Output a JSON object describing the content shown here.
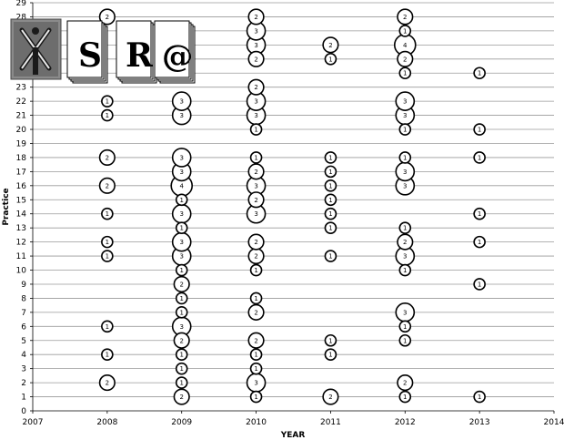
{
  "chart_data": {
    "type": "bubble",
    "xlabel": "YEAR",
    "ylabel": "Practice",
    "xlim": [
      2007,
      2014
    ],
    "ylim": [
      0,
      29
    ],
    "x_ticks": [
      "2007",
      "2008",
      "2009",
      "2010",
      "2011",
      "2012",
      "2013",
      "2014"
    ],
    "y_ticks": [
      "0",
      "1",
      "2",
      "3",
      "4",
      "5",
      "6",
      "7",
      "8",
      "9",
      "10",
      "11",
      "12",
      "13",
      "14",
      "15",
      "16",
      "17",
      "18",
      "19",
      "20",
      "21",
      "22",
      "23",
      "24",
      "25",
      "26",
      "27",
      "28",
      "29"
    ],
    "grid": true,
    "bubble_color": "#ffffff",
    "bubble_stroke": "#000000",
    "points": [
      {
        "x": 2008,
        "y": 2,
        "count": 2
      },
      {
        "x": 2008,
        "y": 4,
        "count": 1
      },
      {
        "x": 2008,
        "y": 6,
        "count": 1
      },
      {
        "x": 2008,
        "y": 11,
        "count": 1
      },
      {
        "x": 2008,
        "y": 12,
        "count": 1
      },
      {
        "x": 2008,
        "y": 14,
        "count": 1
      },
      {
        "x": 2008,
        "y": 16,
        "count": 2
      },
      {
        "x": 2008,
        "y": 18,
        "count": 2
      },
      {
        "x": 2008,
        "y": 21,
        "count": 1
      },
      {
        "x": 2008,
        "y": 22,
        "count": 1
      },
      {
        "x": 2008,
        "y": 28,
        "count": 2
      },
      {
        "x": 2009,
        "y": 1,
        "count": 2
      },
      {
        "x": 2009,
        "y": 2,
        "count": 1
      },
      {
        "x": 2009,
        "y": 3,
        "count": 1
      },
      {
        "x": 2009,
        "y": 4,
        "count": 1
      },
      {
        "x": 2009,
        "y": 5,
        "count": 2
      },
      {
        "x": 2009,
        "y": 6,
        "count": 3
      },
      {
        "x": 2009,
        "y": 7,
        "count": 1
      },
      {
        "x": 2009,
        "y": 8,
        "count": 1
      },
      {
        "x": 2009,
        "y": 9,
        "count": 2
      },
      {
        "x": 2009,
        "y": 10,
        "count": 1
      },
      {
        "x": 2009,
        "y": 11,
        "count": 3
      },
      {
        "x": 2009,
        "y": 12,
        "count": 3
      },
      {
        "x": 2009,
        "y": 13,
        "count": 1
      },
      {
        "x": 2009,
        "y": 14,
        "count": 3
      },
      {
        "x": 2009,
        "y": 15,
        "count": 1
      },
      {
        "x": 2009,
        "y": 16,
        "count": 4
      },
      {
        "x": 2009,
        "y": 17,
        "count": 3
      },
      {
        "x": 2009,
        "y": 18,
        "count": 3
      },
      {
        "x": 2009,
        "y": 21,
        "count": 3
      },
      {
        "x": 2009,
        "y": 22,
        "count": 3
      },
      {
        "x": 2010,
        "y": 1,
        "count": 1
      },
      {
        "x": 2010,
        "y": 2,
        "count": 3
      },
      {
        "x": 2010,
        "y": 3,
        "count": 1
      },
      {
        "x": 2010,
        "y": 4,
        "count": 1
      },
      {
        "x": 2010,
        "y": 5,
        "count": 2
      },
      {
        "x": 2010,
        "y": 7,
        "count": 2
      },
      {
        "x": 2010,
        "y": 8,
        "count": 1
      },
      {
        "x": 2010,
        "y": 10,
        "count": 1
      },
      {
        "x": 2010,
        "y": 11,
        "count": 2
      },
      {
        "x": 2010,
        "y": 12,
        "count": 2
      },
      {
        "x": 2010,
        "y": 14,
        "count": 3
      },
      {
        "x": 2010,
        "y": 15,
        "count": 2
      },
      {
        "x": 2010,
        "y": 16,
        "count": 3
      },
      {
        "x": 2010,
        "y": 17,
        "count": 2
      },
      {
        "x": 2010,
        "y": 18,
        "count": 1
      },
      {
        "x": 2010,
        "y": 20,
        "count": 1
      },
      {
        "x": 2010,
        "y": 21,
        "count": 3
      },
      {
        "x": 2010,
        "y": 22,
        "count": 3
      },
      {
        "x": 2010,
        "y": 23,
        "count": 2
      },
      {
        "x": 2010,
        "y": 25,
        "count": 2
      },
      {
        "x": 2010,
        "y": 26,
        "count": 3
      },
      {
        "x": 2010,
        "y": 27,
        "count": 3
      },
      {
        "x": 2010,
        "y": 28,
        "count": 2
      },
      {
        "x": 2011,
        "y": 1,
        "count": 2
      },
      {
        "x": 2011,
        "y": 4,
        "count": 1
      },
      {
        "x": 2011,
        "y": 5,
        "count": 1
      },
      {
        "x": 2011,
        "y": 11,
        "count": 1
      },
      {
        "x": 2011,
        "y": 13,
        "count": 1
      },
      {
        "x": 2011,
        "y": 14,
        "count": 1
      },
      {
        "x": 2011,
        "y": 15,
        "count": 1
      },
      {
        "x": 2011,
        "y": 16,
        "count": 1
      },
      {
        "x": 2011,
        "y": 17,
        "count": 1
      },
      {
        "x": 2011,
        "y": 18,
        "count": 1
      },
      {
        "x": 2011,
        "y": 25,
        "count": 1
      },
      {
        "x": 2011,
        "y": 26,
        "count": 2
      },
      {
        "x": 2012,
        "y": 1,
        "count": 1
      },
      {
        "x": 2012,
        "y": 2,
        "count": 2
      },
      {
        "x": 2012,
        "y": 5,
        "count": 1
      },
      {
        "x": 2012,
        "y": 6,
        "count": 1
      },
      {
        "x": 2012,
        "y": 7,
        "count": 3
      },
      {
        "x": 2012,
        "y": 10,
        "count": 1
      },
      {
        "x": 2012,
        "y": 11,
        "count": 3
      },
      {
        "x": 2012,
        "y": 12,
        "count": 2
      },
      {
        "x": 2012,
        "y": 13,
        "count": 1
      },
      {
        "x": 2012,
        "y": 16,
        "count": 3
      },
      {
        "x": 2012,
        "y": 17,
        "count": 3
      },
      {
        "x": 2012,
        "y": 18,
        "count": 1
      },
      {
        "x": 2012,
        "y": 20,
        "count": 1
      },
      {
        "x": 2012,
        "y": 21,
        "count": 3
      },
      {
        "x": 2012,
        "y": 22,
        "count": 3
      },
      {
        "x": 2012,
        "y": 24,
        "count": 1
      },
      {
        "x": 2012,
        "y": 25,
        "count": 2
      },
      {
        "x": 2012,
        "y": 26,
        "count": 4
      },
      {
        "x": 2012,
        "y": 27,
        "count": 1
      },
      {
        "x": 2012,
        "y": 28,
        "count": 2
      },
      {
        "x": 2013,
        "y": 1,
        "count": 1
      },
      {
        "x": 2013,
        "y": 9,
        "count": 1
      },
      {
        "x": 2013,
        "y": 12,
        "count": 1
      },
      {
        "x": 2013,
        "y": 14,
        "count": 1
      },
      {
        "x": 2013,
        "y": 18,
        "count": 1
      },
      {
        "x": 2013,
        "y": 20,
        "count": 1
      },
      {
        "x": 2013,
        "y": 24,
        "count": 1
      }
    ]
  },
  "logo": {
    "letters": [
      "S",
      "R",
      "@"
    ],
    "colors": {
      "tile_bg": "#8a8a8a",
      "tile_dark": "#3a3a3a",
      "card_bg": "#ffffff"
    }
  }
}
